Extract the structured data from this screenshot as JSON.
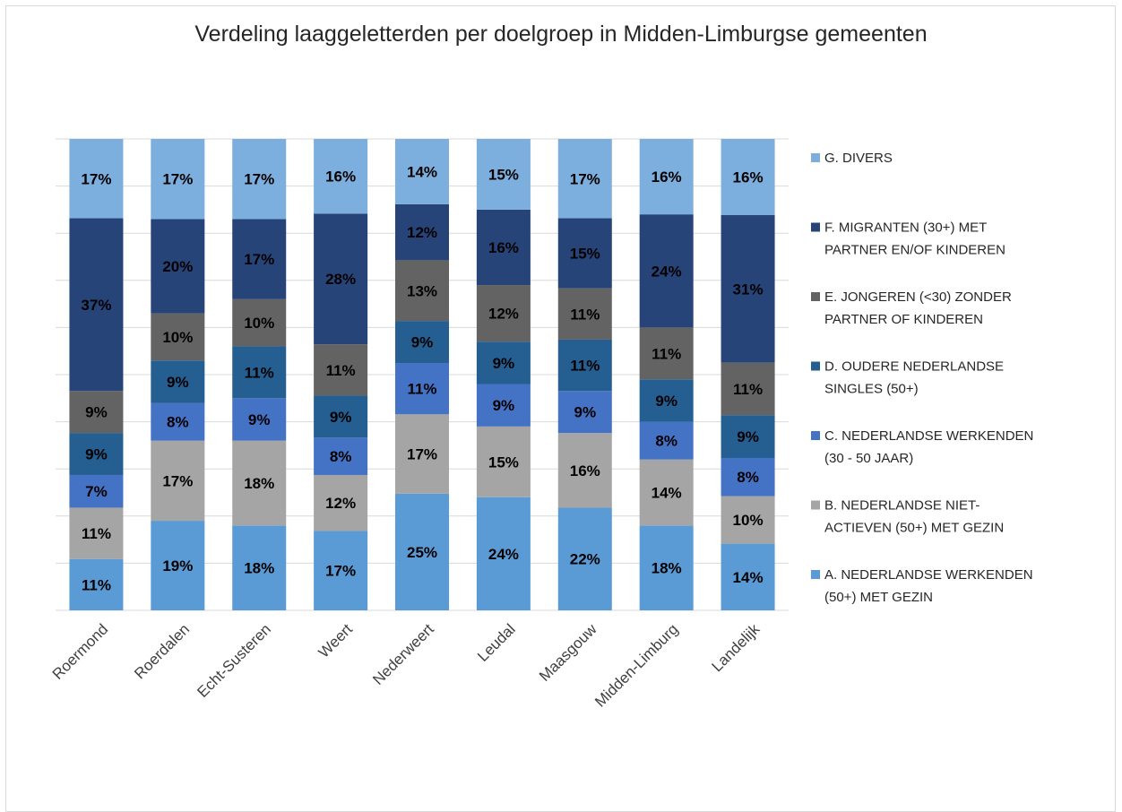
{
  "chart_data": {
    "type": "bar",
    "stacked": true,
    "normalized": true,
    "title": "Verdeling laaggeletterden per doelgroep in Midden-Limburgse gemeenten",
    "categories": [
      "Roermond",
      "Roerdalen",
      "Echt-Susteren",
      "Weert",
      "Nederweert",
      "Leudal",
      "Maasgouw",
      "Midden-Limburg",
      "Landelijk"
    ],
    "series": [
      {
        "name": "A. NEDERLANDSE WERKENDEN (50+) MET GEZIN",
        "color": "#5b9bd5",
        "label_color": "#000000",
        "values": [
          11,
          19,
          18,
          17,
          25,
          24,
          22,
          18,
          14
        ]
      },
      {
        "name": "B. NEDERLANDSE NIET-ACTIEVEN (50+) MET GEZIN",
        "color": "#a5a5a5",
        "label_color": "#000000",
        "values": [
          11,
          17,
          18,
          12,
          17,
          15,
          16,
          14,
          10
        ]
      },
      {
        "name": "C. NEDERLANDSE WERKENDEN (30 - 50 JAAR)",
        "color": "#4472c4",
        "label_color": "#000000",
        "values": [
          7,
          8,
          9,
          8,
          11,
          9,
          9,
          8,
          8
        ]
      },
      {
        "name": "D. OUDERE NEDERLANDSE SINGLES (50+)",
        "color": "#255e91",
        "label_color": "#000000",
        "values": [
          9,
          9,
          11,
          9,
          9,
          9,
          11,
          9,
          9
        ]
      },
      {
        "name": "E. JONGEREN (<30) ZONDER PARTNER OF KINDEREN",
        "color": "#636363",
        "label_color": "#000000",
        "values": [
          9,
          10,
          10,
          11,
          13,
          12,
          11,
          11,
          11
        ]
      },
      {
        "name": "F. MIGRANTEN (30+) MET PARTNER EN/OF KINDEREN",
        "color": "#264478",
        "label_color": "#000000",
        "values": [
          37,
          20,
          17,
          28,
          12,
          16,
          15,
          24,
          31
        ]
      },
      {
        "name": "G. DIVERS",
        "color": "#7cafdd",
        "label_color": "#000000",
        "values": [
          17,
          17,
          17,
          16,
          14,
          15,
          17,
          16,
          16
        ]
      }
    ],
    "legend_lines": [
      [
        "G. DIVERS"
      ],
      [
        "F. MIGRANTEN (30+) MET",
        "PARTNER EN/OF KINDEREN"
      ],
      [
        "E. JONGEREN (<30) ZONDER",
        "PARTNER OF KINDEREN"
      ],
      [
        "D. OUDERE NEDERLANDSE",
        "SINGLES (50+)"
      ],
      [
        "C. NEDERLANDSE WERKENDEN",
        "(30 - 50 JAAR)"
      ],
      [
        "B. NEDERLANDSE NIET-",
        "ACTIEVEN (50+) MET GEZIN"
      ],
      [
        "A. NEDERLANDSE WERKENDEN",
        "(50+) MET GEZIN"
      ]
    ],
    "legend_position": "right",
    "ylim": [
      0,
      100
    ],
    "grid": true,
    "gridline_color": "#d9d9d9"
  }
}
